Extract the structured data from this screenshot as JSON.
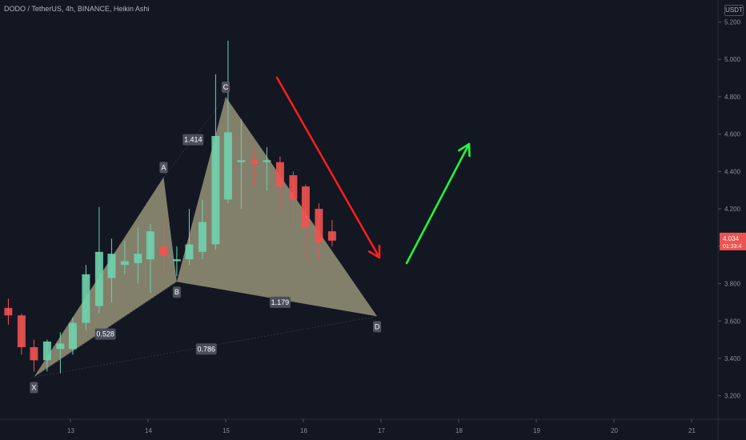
{
  "header": {
    "title": "DODO / TetherUS, 4h, BINANCE, Heikin Ashi",
    "currency": "USDT"
  },
  "price_label": {
    "price": "4.034",
    "countdown": "01:33:4"
  },
  "chart_data": {
    "type": "candlestick",
    "ylim": [
      3.1,
      5.25
    ],
    "y_ticks": [
      "5.200",
      "5.000",
      "4.800",
      "4.600",
      "4.400",
      "4.200",
      "4.000",
      "3.800",
      "3.600",
      "3.400",
      "3.200"
    ],
    "x_ticks": [
      "13",
      "14",
      "15",
      "16",
      "17",
      "18",
      "19",
      "20",
      "21"
    ],
    "colors": {
      "up": "#6fd1ac",
      "down": "#ef5350",
      "pattern_fill": "#8f8b73",
      "arrow_down": "#ff1f1f",
      "arrow_up": "#1fff3a"
    },
    "candles": [
      {
        "x": 12.03,
        "o": 3.68,
        "h": 3.7,
        "l": 3.62,
        "c": 3.65
      },
      {
        "x": 12.2,
        "o": 3.67,
        "h": 3.72,
        "l": 3.58,
        "c": 3.63
      },
      {
        "x": 12.37,
        "o": 3.63,
        "h": 3.64,
        "l": 3.42,
        "c": 3.46
      },
      {
        "x": 12.53,
        "o": 3.46,
        "h": 3.5,
        "l": 3.33,
        "c": 3.39
      },
      {
        "x": 12.7,
        "o": 3.39,
        "h": 3.5,
        "l": 3.33,
        "c": 3.49
      },
      {
        "x": 12.87,
        "o": 3.45,
        "h": 3.54,
        "l": 3.32,
        "c": 3.48
      },
      {
        "x": 13.03,
        "o": 3.45,
        "h": 3.62,
        "l": 3.42,
        "c": 3.59
      },
      {
        "x": 13.2,
        "o": 3.59,
        "h": 3.9,
        "l": 3.55,
        "c": 3.85
      },
      {
        "x": 13.37,
        "o": 3.68,
        "h": 4.21,
        "l": 3.64,
        "c": 3.97
      },
      {
        "x": 13.53,
        "o": 3.83,
        "h": 4.04,
        "l": 3.7,
        "c": 3.96
      },
      {
        "x": 13.7,
        "o": 3.9,
        "h": 4.03,
        "l": 3.85,
        "c": 3.92
      },
      {
        "x": 13.87,
        "o": 3.91,
        "h": 4.1,
        "l": 3.8,
        "c": 3.96
      },
      {
        "x": 14.03,
        "o": 3.93,
        "h": 4.12,
        "l": 3.75,
        "c": 4.08
      },
      {
        "x": 14.2,
        "o": 4.0,
        "h": 4.14,
        "l": 3.85,
        "c": 3.95
      },
      {
        "x": 14.37,
        "o": 3.92,
        "h": 4.0,
        "l": 3.84,
        "c": 3.93
      },
      {
        "x": 14.53,
        "o": 3.93,
        "h": 4.2,
        "l": 3.9,
        "c": 4.01
      },
      {
        "x": 14.7,
        "o": 3.97,
        "h": 4.25,
        "l": 3.93,
        "c": 4.13
      },
      {
        "x": 14.87,
        "o": 4.01,
        "h": 4.92,
        "l": 3.98,
        "c": 4.59
      },
      {
        "x": 15.03,
        "o": 4.25,
        "h": 5.1,
        "l": 4.23,
        "c": 4.61
      },
      {
        "x": 15.2,
        "o": 4.45,
        "h": 4.68,
        "l": 4.2,
        "c": 4.46
      },
      {
        "x": 15.37,
        "o": 4.46,
        "h": 4.52,
        "l": 4.32,
        "c": 4.44
      },
      {
        "x": 15.53,
        "o": 4.45,
        "h": 4.53,
        "l": 4.3,
        "c": 4.46
      },
      {
        "x": 15.7,
        "o": 4.45,
        "h": 4.48,
        "l": 4.2,
        "c": 4.32
      },
      {
        "x": 15.87,
        "o": 4.38,
        "h": 4.4,
        "l": 4.1,
        "c": 4.25
      },
      {
        "x": 16.03,
        "o": 4.32,
        "h": 4.33,
        "l": 3.92,
        "c": 4.1
      },
      {
        "x": 16.2,
        "o": 4.2,
        "h": 4.23,
        "l": 3.93,
        "c": 4.02
      },
      {
        "x": 16.37,
        "o": 4.08,
        "h": 4.14,
        "l": 4.0,
        "c": 4.03
      }
    ],
    "pattern": {
      "points": [
        {
          "label": "X",
          "x": 12.53,
          "y": 3.3
        },
        {
          "label": "A",
          "x": 14.2,
          "y": 4.37
        },
        {
          "label": "B",
          "x": 14.37,
          "y": 3.81
        },
        {
          "label": "C",
          "x": 15.0,
          "y": 4.8
        },
        {
          "label": "D",
          "x": 16.95,
          "y": 3.625
        }
      ],
      "ratios": [
        {
          "text": "0.528",
          "x": 13.45,
          "y": 3.53
        },
        {
          "text": "1.414",
          "x": 14.58,
          "y": 4.57
        },
        {
          "text": "1.179",
          "x": 15.7,
          "y": 3.7
        },
        {
          "text": "0.786",
          "x": 14.75,
          "y": 3.45
        }
      ]
    }
  }
}
